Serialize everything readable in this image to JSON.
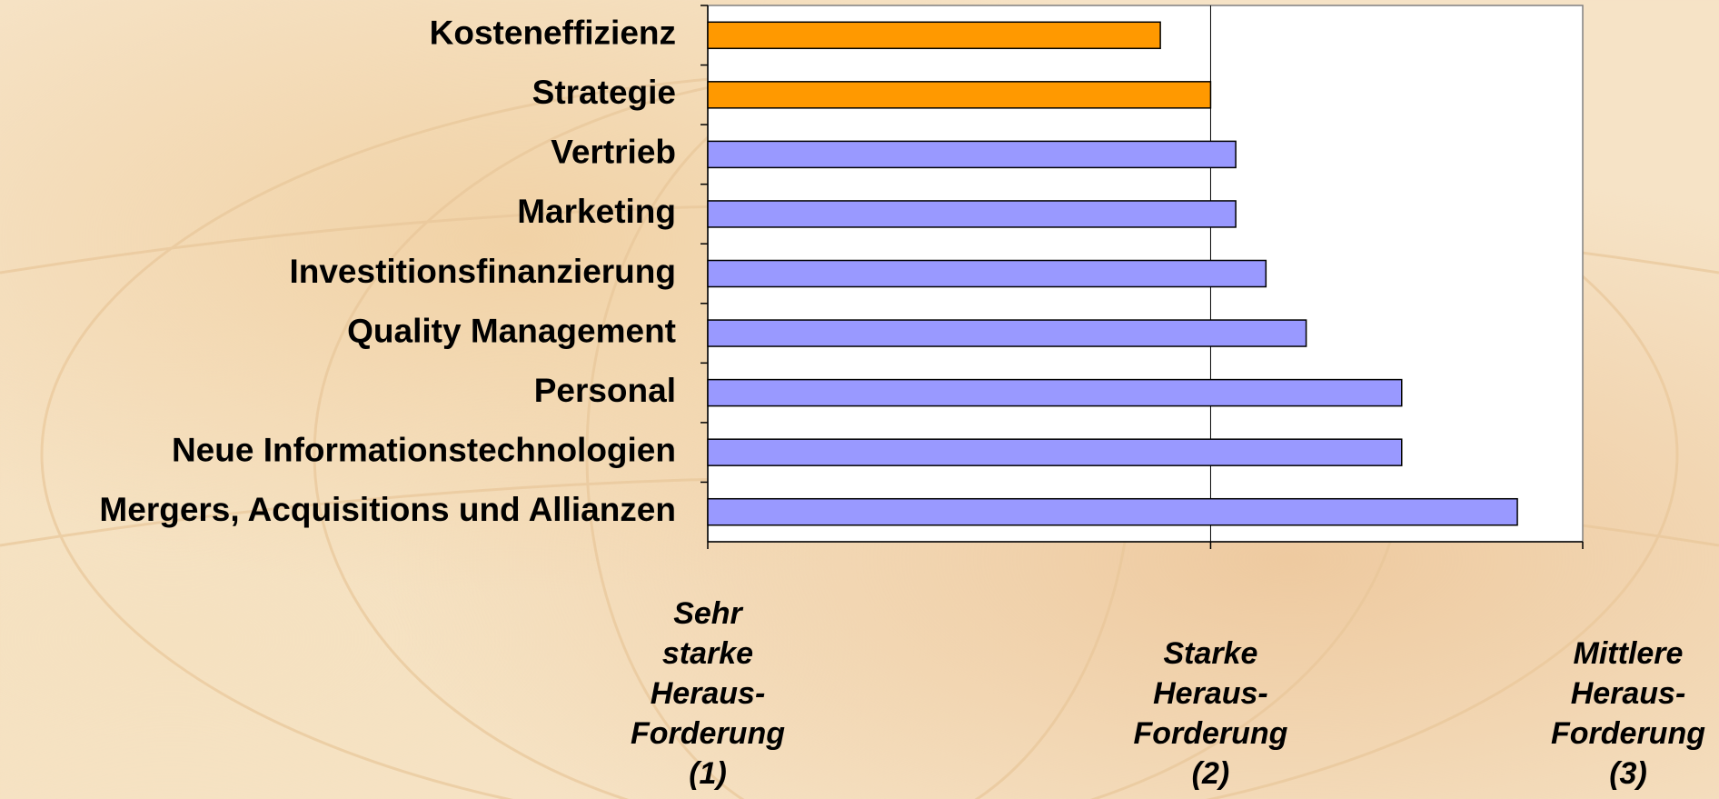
{
  "chart_data": {
    "type": "bar",
    "orientation": "horizontal",
    "categories": [
      "Kosteneffizienz",
      "Strategie",
      "Vertrieb",
      "Marketing",
      "Investitionsfinanzierung",
      "Quality Management",
      "Personal",
      "Neue Informationstechnologien",
      "Mergers, Acquisitions und Allianzen"
    ],
    "values": [
      1.9,
      2.0,
      2.05,
      2.05,
      2.11,
      2.19,
      2.38,
      2.38,
      2.61
    ],
    "colors": [
      "#ff9900",
      "#ff9900",
      "#9999ff",
      "#9999ff",
      "#9999ff",
      "#9999ff",
      "#9999ff",
      "#9999ff",
      "#9999ff"
    ],
    "xlim": [
      1,
      2.74
    ],
    "xticks": [
      {
        "value": 1,
        "label": "Sehr\nstarke\nHeraus-\nForderung\n(1)"
      },
      {
        "value": 2,
        "label": "Starke\nHeraus-\nForderung\n(2)"
      }
    ],
    "x_end_label": "Mittlere\nHeraus-\nForderung\n(3)",
    "grid": true
  }
}
